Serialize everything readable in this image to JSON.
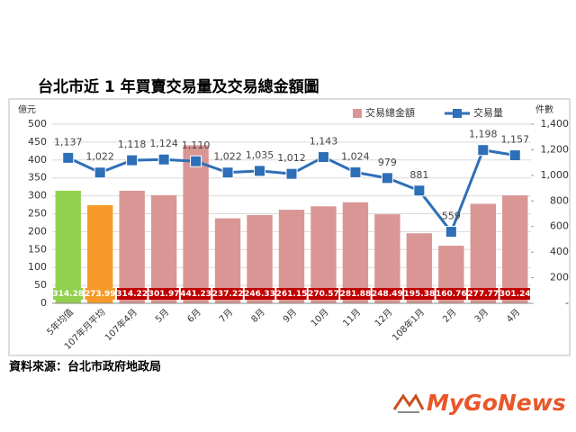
{
  "chart_data": {
    "type": "bar_line",
    "title": "台北市近 1 年買賣交易量及交易總金額圖",
    "y_label": "億元",
    "y2_label": "件數",
    "source": "資料來源：台北市政府地政局",
    "logo": "MyGoNews",
    "categories": [
      "5年均值",
      "107年月平均",
      "107年4月",
      "5月",
      "6月",
      "7月",
      "8月",
      "9月",
      "10月",
      "11月",
      "12月",
      "108年1月",
      "2月",
      "3月",
      "4月"
    ],
    "ylim": [
      0,
      500
    ],
    "yticks": [
      0,
      50,
      100,
      150,
      200,
      250,
      300,
      350,
      400,
      450,
      500
    ],
    "y2lim": [
      0,
      1400
    ],
    "y2ticks": [
      {
        "value": 0,
        "label": "-"
      },
      {
        "value": 200,
        "label": "200"
      },
      {
        "value": 400,
        "label": "400"
      },
      {
        "value": 600,
        "label": "600"
      },
      {
        "value": 800,
        "label": "800"
      },
      {
        "value": 1000,
        "label": "1,000"
      },
      {
        "value": 1200,
        "label": "1,200"
      },
      {
        "value": 1400,
        "label": "1,400"
      }
    ],
    "grid": true,
    "legend": "top-right",
    "series": [
      {
        "name": "交易總金額",
        "type": "bar",
        "color": "#d99694",
        "colors": [
          "#92d050",
          "#f79a2a",
          "#d99694",
          "#d99694",
          "#d99694",
          "#d99694",
          "#d99694",
          "#d99694",
          "#d99694",
          "#d99694",
          "#d99694",
          "#d99694",
          "#d99694",
          "#d99694",
          "#d99694"
        ],
        "label_colors": [
          "#92d050",
          "#f79a2a",
          "#c00000",
          "#c00000",
          "#c00000",
          "#c00000",
          "#c00000",
          "#c00000",
          "#c00000",
          "#c00000",
          "#c00000",
          "#c00000",
          "#c00000",
          "#c00000",
          "#c00000"
        ],
        "values": [
          314.28,
          273.99,
          314.22,
          301.97,
          441.23,
          237.22,
          246.33,
          261.15,
          270.57,
          281.88,
          248.49,
          195.38,
          160.76,
          277.77,
          301.24
        ]
      },
      {
        "name": "交易量",
        "type": "line",
        "axis": "y2",
        "color": "#2e6fb7",
        "values": [
          1137,
          1022,
          1118,
          1124,
          1110,
          1022,
          1035,
          1012,
          1143,
          1024,
          979,
          881,
          559,
          1198,
          1157
        ],
        "value_labels": [
          "1,137",
          "1,022",
          "1,118",
          "1,124",
          "1,110",
          "1,022",
          "1,035",
          "1,012",
          "1,143",
          "1,024",
          "979",
          "881",
          "559",
          "1,198",
          "1,157"
        ]
      }
    ]
  }
}
